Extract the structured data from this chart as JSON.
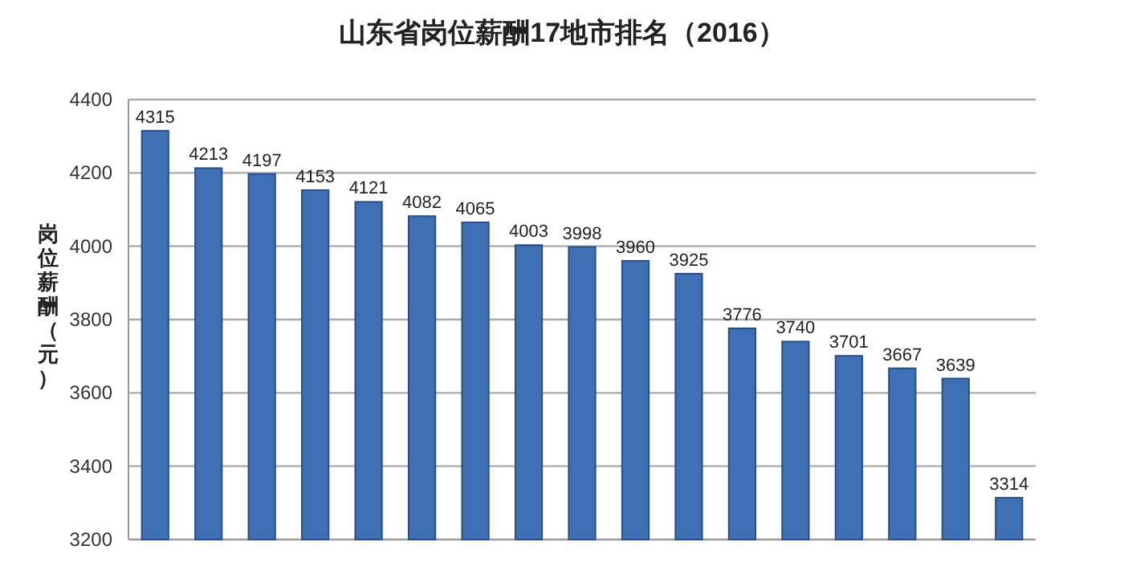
{
  "chart_data": {
    "type": "bar",
    "title": "山东省岗位薪酬17地市排名（2016）",
    "ylabel": "岗位薪酬（元）",
    "categories": [
      null,
      null,
      null,
      null,
      null,
      null,
      null,
      null,
      null,
      null,
      null,
      null,
      null,
      null,
      null,
      null,
      null
    ],
    "values": [
      4315,
      4213,
      4197,
      4153,
      4121,
      4082,
      4065,
      4003,
      3998,
      3960,
      3925,
      3776,
      3740,
      3701,
      3667,
      3639,
      3314
    ],
    "color": "#3f6fb4",
    "ylim": [
      3200,
      4400
    ],
    "yticks": [
      3200,
      3400,
      3600,
      3800,
      4000,
      4200,
      4400
    ],
    "grid": "y",
    "data_labels": true
  }
}
